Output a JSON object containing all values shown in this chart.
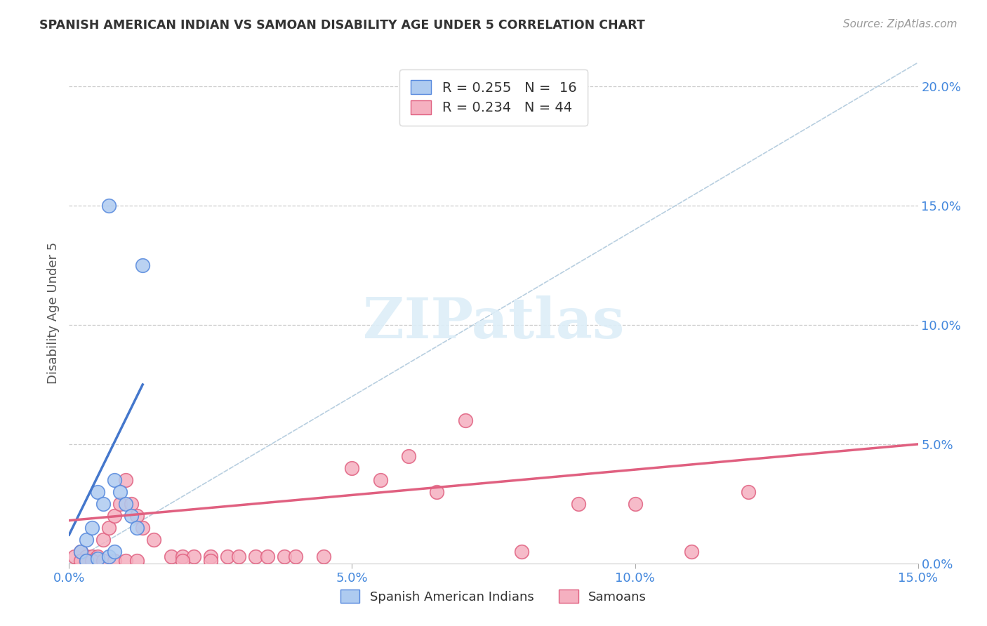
{
  "title": "SPANISH AMERICAN INDIAN VS SAMOAN DISABILITY AGE UNDER 5 CORRELATION CHART",
  "source": "Source: ZipAtlas.com",
  "ylabel": "Disability Age Under 5",
  "xlim": [
    0.0,
    0.15
  ],
  "ylim": [
    0.0,
    0.21
  ],
  "xticks": [
    0.0,
    0.05,
    0.1,
    0.15
  ],
  "yticks": [
    0.0,
    0.05,
    0.1,
    0.15,
    0.2
  ],
  "ytick_labels_right": [
    "0.0%",
    "5.0%",
    "10.0%",
    "15.0%",
    "20.0%"
  ],
  "xtick_labels": [
    "0.0%",
    "5.0%",
    "10.0%",
    "15.0%"
  ],
  "blue_R": 0.255,
  "blue_N": 16,
  "pink_R": 0.234,
  "pink_N": 44,
  "blue_color": "#aecbf0",
  "pink_color": "#f5b0c0",
  "blue_edge_color": "#5588dd",
  "pink_edge_color": "#e06080",
  "blue_line_color": "#4477cc",
  "pink_line_color": "#e06080",
  "diag_line_color": "#b8cfe0",
  "watermark_color": "#ddeef8",
  "watermark": "ZIPatlas",
  "background_color": "#ffffff",
  "blue_scatter_x": [
    0.002,
    0.003,
    0.004,
    0.005,
    0.006,
    0.007,
    0.008,
    0.009,
    0.01,
    0.011,
    0.012,
    0.013,
    0.003,
    0.005,
    0.007,
    0.008
  ],
  "blue_scatter_y": [
    0.005,
    0.01,
    0.015,
    0.03,
    0.025,
    0.15,
    0.035,
    0.03,
    0.025,
    0.02,
    0.015,
    0.125,
    0.001,
    0.002,
    0.003,
    0.005
  ],
  "pink_scatter_x": [
    0.001,
    0.002,
    0.003,
    0.004,
    0.005,
    0.006,
    0.007,
    0.008,
    0.009,
    0.01,
    0.011,
    0.012,
    0.013,
    0.015,
    0.018,
    0.02,
    0.022,
    0.025,
    0.028,
    0.03,
    0.033,
    0.035,
    0.038,
    0.04,
    0.045,
    0.05,
    0.055,
    0.06,
    0.065,
    0.07,
    0.08,
    0.09,
    0.1,
    0.11,
    0.12,
    0.002,
    0.003,
    0.004,
    0.006,
    0.008,
    0.01,
    0.012,
    0.02,
    0.025
  ],
  "pink_scatter_y": [
    0.003,
    0.005,
    0.003,
    0.003,
    0.003,
    0.01,
    0.015,
    0.02,
    0.025,
    0.035,
    0.025,
    0.02,
    0.015,
    0.01,
    0.003,
    0.003,
    0.003,
    0.003,
    0.003,
    0.003,
    0.003,
    0.003,
    0.003,
    0.003,
    0.003,
    0.04,
    0.035,
    0.045,
    0.03,
    0.06,
    0.005,
    0.025,
    0.025,
    0.005,
    0.03,
    0.001,
    0.001,
    0.001,
    0.001,
    0.001,
    0.001,
    0.001,
    0.001,
    0.001
  ],
  "blue_line_x": [
    0.0,
    0.013
  ],
  "blue_line_y": [
    0.012,
    0.075
  ],
  "pink_line_x": [
    0.0,
    0.15
  ],
  "pink_line_y": [
    0.018,
    0.05
  ]
}
